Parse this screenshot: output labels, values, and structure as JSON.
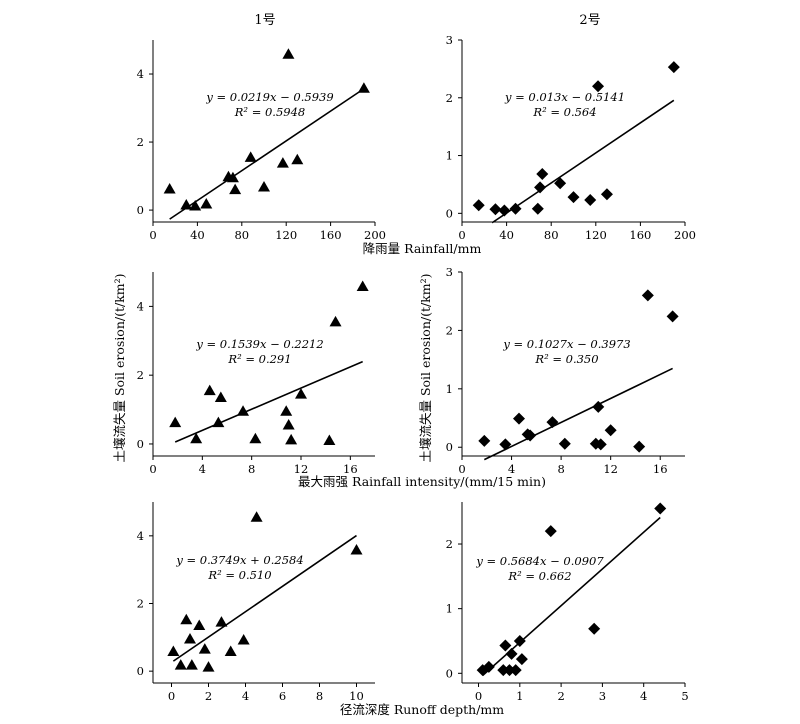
{
  "col_titles": [
    "1号",
    "2号"
  ],
  "ylabel": "土壤流失量 Soil erosion/(t/km²)",
  "chart_data": [
    {
      "type": "scatter",
      "id": "p11",
      "marker": "triangle",
      "x": [
        15,
        30,
        38,
        48,
        68,
        72,
        74,
        88,
        100,
        117,
        122,
        130,
        190
      ],
      "y": [
        0.62,
        0.15,
        0.12,
        0.18,
        0.98,
        0.95,
        0.6,
        1.55,
        0.68,
        1.38,
        4.58,
        1.48,
        3.58
      ],
      "fit": {
        "slope": 0.0219,
        "intercept": -0.5939,
        "x0": 15,
        "x1": 190
      },
      "equation": "y = 0.0219x − 0.5939",
      "r2": "R² = 0.5948",
      "xlim": [
        0,
        200
      ],
      "ylim": [
        -0.35,
        5.0
      ],
      "xticks": [
        0,
        40,
        80,
        120,
        160,
        200
      ],
      "yticks": [
        0,
        2,
        4
      ],
      "xlabel": "降雨量 Rainfall/mm"
    },
    {
      "type": "scatter",
      "id": "p12",
      "marker": "diamond",
      "x": [
        15,
        30,
        38,
        48,
        68,
        70,
        72,
        88,
        100,
        115,
        122,
        130,
        190
      ],
      "y": [
        0.14,
        0.07,
        0.05,
        0.08,
        0.08,
        0.45,
        0.68,
        0.52,
        0.28,
        0.23,
        2.2,
        0.33,
        2.53
      ],
      "fit": {
        "slope": 0.013,
        "intercept": -0.5141,
        "x0": 27,
        "x1": 190
      },
      "equation": "y = 0.013x − 0.5141",
      "r2": "R² = 0.564",
      "xlim": [
        0,
        200
      ],
      "ylim": [
        -0.15,
        3.0
      ],
      "xticks": [
        0,
        40,
        80,
        120,
        160,
        200
      ],
      "yticks": [
        0,
        1,
        2,
        3
      ]
    },
    {
      "type": "scatter",
      "id": "p21",
      "marker": "triangle",
      "x": [
        1.8,
        3.5,
        4.6,
        5.3,
        5.5,
        7.3,
        8.3,
        10.8,
        11.0,
        11.2,
        12.0,
        14.3,
        14.8,
        17.0
      ],
      "y": [
        0.62,
        0.15,
        1.55,
        0.62,
        1.35,
        0.95,
        0.15,
        0.95,
        0.55,
        0.12,
        1.45,
        0.1,
        3.55,
        4.58
      ],
      "fit": {
        "slope": 0.1539,
        "intercept": -0.2212,
        "x0": 1.8,
        "x1": 17.0
      },
      "equation": "y = 0.1539x − 0.2212",
      "r2": "R² = 0.291",
      "xlim": [
        0,
        18
      ],
      "ylim": [
        -0.35,
        5.0
      ],
      "xticks": [
        0,
        4,
        8,
        12,
        16
      ],
      "yticks": [
        0,
        2,
        4
      ]
    },
    {
      "type": "scatter",
      "id": "p22",
      "marker": "diamond",
      "x": [
        1.8,
        3.5,
        4.6,
        5.3,
        5.5,
        7.3,
        8.3,
        10.8,
        11.0,
        11.2,
        12.0,
        14.3,
        15.0,
        17.0
      ],
      "y": [
        0.11,
        0.05,
        0.49,
        0.22,
        0.2,
        0.43,
        0.06,
        0.06,
        0.69,
        0.05,
        0.29,
        0.01,
        2.6,
        2.24
      ],
      "fit": {
        "slope": 0.1027,
        "intercept": -0.3973,
        "x0": 1.8,
        "x1": 17.0
      },
      "equation": "y = 0.1027x − 0.3973",
      "r2": "R² = 0.350",
      "xlim": [
        0,
        18
      ],
      "ylim": [
        -0.15,
        3.0
      ],
      "xticks": [
        0,
        4,
        8,
        12,
        16
      ],
      "yticks": [
        0,
        1,
        2,
        3
      ],
      "xlabel": "最大雨强 Rainfall intensity/(mm/15 min)"
    },
    {
      "type": "scatter",
      "id": "p31",
      "marker": "triangle",
      "x": [
        0.1,
        0.5,
        0.8,
        1.0,
        1.1,
        1.5,
        1.8,
        2.0,
        2.7,
        3.2,
        3.9,
        4.6,
        10.0
      ],
      "y": [
        0.58,
        0.18,
        1.52,
        0.95,
        0.18,
        1.35,
        0.65,
        0.12,
        1.45,
        0.58,
        0.92,
        4.55,
        3.58
      ],
      "fit": {
        "slope": 0.3749,
        "intercept": 0.2584,
        "x0": 0.1,
        "x1": 10.0
      },
      "equation": "y = 0.3749x + 0.2584",
      "r2": "R² = 0.510",
      "xlim": [
        -1,
        11
      ],
      "ylim": [
        -0.35,
        5.0
      ],
      "xticks": [
        0,
        2,
        4,
        6,
        8,
        10
      ],
      "yticks": [
        0,
        2,
        4
      ]
    },
    {
      "type": "scatter",
      "id": "p32",
      "marker": "diamond",
      "x": [
        0.1,
        0.25,
        0.6,
        0.65,
        0.75,
        0.8,
        0.9,
        1.0,
        1.05,
        1.75,
        2.8,
        4.4
      ],
      "y": [
        0.05,
        0.1,
        0.05,
        0.43,
        0.05,
        0.3,
        0.05,
        0.5,
        0.22,
        2.2,
        0.69,
        2.55
      ],
      "fit": {
        "slope": 0.5684,
        "intercept": -0.0907,
        "x0": 0.1,
        "x1": 4.4
      },
      "equation": "y = 0.5684x − 0.0907",
      "r2": "R² = 0.662",
      "xlim": [
        -0.4,
        5.0
      ],
      "ylim": [
        -0.15,
        2.65
      ],
      "xticks": [
        0,
        1,
        2,
        3,
        4,
        5
      ],
      "yticks": [
        0,
        1,
        2
      ]
    }
  ],
  "xlabel_bottom": "径流深度 Runoff depth/mm"
}
